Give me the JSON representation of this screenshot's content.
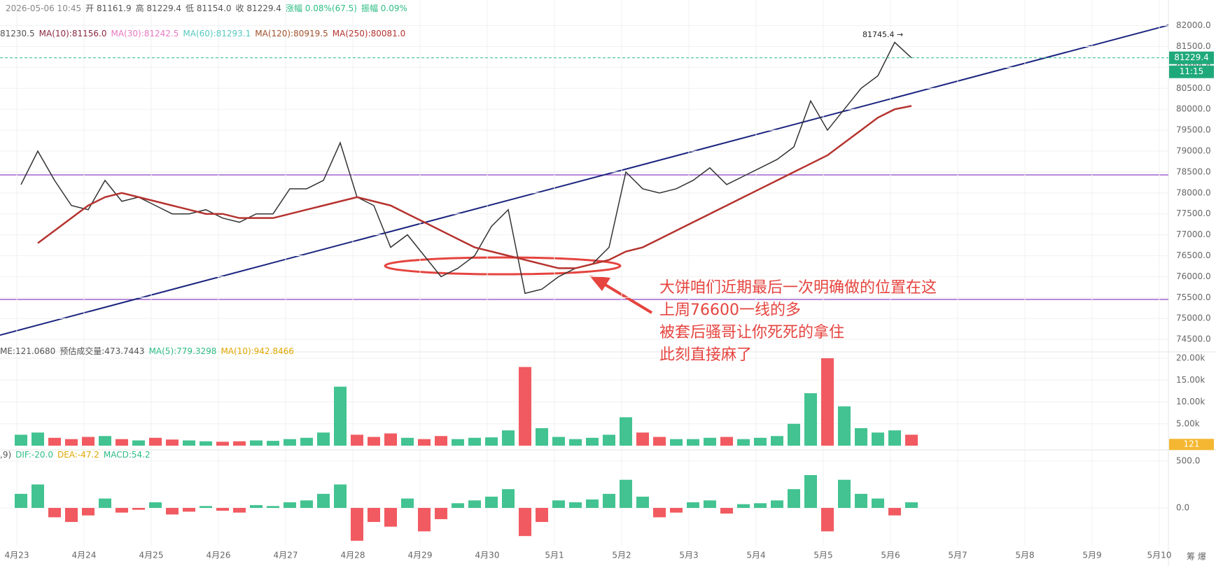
{
  "header": [
    [
      {
        "text": "2026-05-06 10:45",
        "color": "#888"
      },
      {
        "text": "开 81161.9",
        "color": "#555"
      },
      {
        "text": "高 81229.4",
        "color": "#555"
      },
      {
        "text": "低 81154.0",
        "color": "#555"
      },
      {
        "text": "收 81229.4",
        "color": "#555"
      },
      {
        "text": "涨幅 0.08%(67.5)",
        "color": "#2ebd85"
      },
      {
        "text": "振幅 0.09%",
        "color": "#2ebd85"
      }
    ],
    [
      {
        "text": "81230.5",
        "color": "#555"
      },
      {
        "text": "MA(10):81156.0",
        "color": "#8b2942"
      },
      {
        "text": "MA(30):81242.5",
        "color": "#e879c0"
      },
      {
        "text": "MA(60):81293.1",
        "color": "#56c8c0"
      },
      {
        "text": "MA(120):80919.5",
        "color": "#a0522d"
      },
      {
        "text": "MA(250):80081.0",
        "color": "#b5332f"
      }
    ],
    [
      {
        "text": "ME:121.0680",
        "color": "#555"
      },
      {
        "text": "预估成交量:473.7443",
        "color": "#555"
      },
      {
        "text": "MA(5):779.3298",
        "color": "#2ebd85"
      },
      {
        "text": "MA(10):942.8466",
        "color": "#e0a800"
      }
    ],
    [
      {
        "text": ",9)",
        "color": "#555"
      },
      {
        "text": "DIF:-20.0",
        "color": "#2ebd85"
      },
      {
        "text": "DEA:-47.2",
        "color": "#e0a800"
      },
      {
        "text": "MACD:54.2",
        "color": "#2ebd85"
      }
    ]
  ],
  "x_axis": {
    "categories": [
      "4月23",
      "4月24",
      "4月25",
      "4月26",
      "4月27",
      "4月28",
      "4月29",
      "4月30",
      "5月1",
      "5月2",
      "5月3",
      "5月4",
      "5月5",
      "5月6",
      "5月7",
      "5月8",
      "5月9",
      "5月10"
    ]
  },
  "corner_label": "筹 爆",
  "annotation": [
    "大饼咱们近期最后一次明确做的位置在这",
    "上周76600一线的多",
    "被套后骚哥让你死死的拿住",
    "此刻直接麻了"
  ],
  "chart_data": [
    {
      "type": "line",
      "series": [
        {
          "color": "#333333",
          "values": [
            78200,
            79000,
            78300,
            77700,
            77600,
            78300,
            77800,
            77900,
            77700,
            77500,
            77500,
            77600,
            77400,
            77300,
            77500,
            77500,
            78100,
            78100,
            78300,
            79200,
            77900,
            77700,
            76700,
            77000,
            76500,
            76000,
            76200,
            76500,
            77200,
            77600,
            75600,
            75700,
            76000,
            76200,
            76300,
            76700,
            78500,
            78100,
            78000,
            78100,
            78300,
            78600,
            78200,
            78400,
            78600,
            78800,
            79100,
            80200,
            79500,
            80000,
            80500,
            80800,
            81600,
            81229.4
          ]
        },
        {
          "color": "#b5332f",
          "values": [
            null,
            76800,
            77100,
            77400,
            77700,
            77900,
            78000,
            77900,
            77800,
            77700,
            77600,
            77500,
            77500,
            77400,
            77400,
            77400,
            77500,
            77600,
            77700,
            77800,
            77900,
            77800,
            77700,
            77500,
            77300,
            77100,
            76900,
            76700,
            76600,
            76500,
            76400,
            76300,
            76200,
            76200,
            76300,
            76400,
            76600,
            76700,
            76900,
            77100,
            77300,
            77500,
            77700,
            77900,
            78100,
            78300,
            78500,
            78700,
            78900,
            79200,
            79500,
            79800,
            80000,
            80081.0
          ]
        }
      ],
      "last_price": 81229.4,
      "countdown": "11:15",
      "high_label": "81745.4 →",
      "ylim": [
        74234,
        82612
      ],
      "yticks": [
        {
          "value": 74500,
          "label": "74500.0"
        },
        {
          "value": 75000,
          "label": "75000.0"
        },
        {
          "value": 75500,
          "label": "75500.0"
        },
        {
          "value": 76000,
          "label": "76000.0"
        },
        {
          "value": 76500,
          "label": "76500.0"
        },
        {
          "value": 77000,
          "label": "77000.0"
        },
        {
          "value": 77500,
          "label": "77500.0"
        },
        {
          "value": 78000,
          "label": "78000.0"
        },
        {
          "value": 78500,
          "label": "78500.0"
        },
        {
          "value": 79000,
          "label": "79000.0"
        },
        {
          "value": 79500,
          "label": "79500.0"
        },
        {
          "value": 80000,
          "label": "80000.0"
        },
        {
          "value": 80500,
          "label": "80500.0"
        },
        {
          "value": 81000,
          "label": "81000.0"
        },
        {
          "value": 81500,
          "label": "81500.0"
        },
        {
          "value": 82000,
          "label": "82000.0"
        }
      ],
      "grid": true
    },
    {
      "type": "bar",
      "values": [
        2500,
        3000,
        1800,
        1500,
        2000,
        2200,
        1500,
        1200,
        1800,
        1400,
        1200,
        1000,
        900,
        1000,
        1200,
        1100,
        1500,
        1800,
        3000,
        13500,
        2500,
        2000,
        2800,
        1800,
        1500,
        2200,
        1500,
        1800,
        1900,
        3500,
        18000,
        4000,
        2000,
        1500,
        1800,
        2500,
        6500,
        3000,
        2000,
        1500,
        1500,
        1800,
        2000,
        1500,
        1800,
        2200,
        5000,
        12000,
        20000,
        9000,
        4000,
        3000,
        3500,
        2500
      ],
      "last_value": 121,
      "ylim": [
        0,
        21130
      ],
      "yticks": [
        {
          "value": 5000,
          "label": "5.00k"
        },
        {
          "value": 10000,
          "label": "10.00k"
        },
        {
          "value": 15000,
          "label": "15.00k"
        },
        {
          "value": 20000,
          "label": "20.00k"
        }
      ],
      "grid": true
    },
    {
      "type": "bar",
      "values": [
        150,
        250,
        -100,
        -150,
        -80,
        100,
        -50,
        -20,
        60,
        -70,
        -40,
        20,
        -30,
        -50,
        30,
        20,
        60,
        80,
        150,
        250,
        -350,
        -150,
        -200,
        100,
        -250,
        -120,
        50,
        80,
        120,
        200,
        -300,
        -150,
        80,
        60,
        90,
        150,
        300,
        120,
        -100,
        -50,
        60,
        80,
        -60,
        40,
        50,
        80,
        200,
        350,
        -250,
        300,
        150,
        100,
        -80,
        60
      ],
      "ylim": [
        -403,
        604
      ],
      "yticks": [
        {
          "value": 0,
          "label": "0.0"
        },
        {
          "value": 500,
          "label": "500.0"
        }
      ],
      "grid": true
    }
  ]
}
